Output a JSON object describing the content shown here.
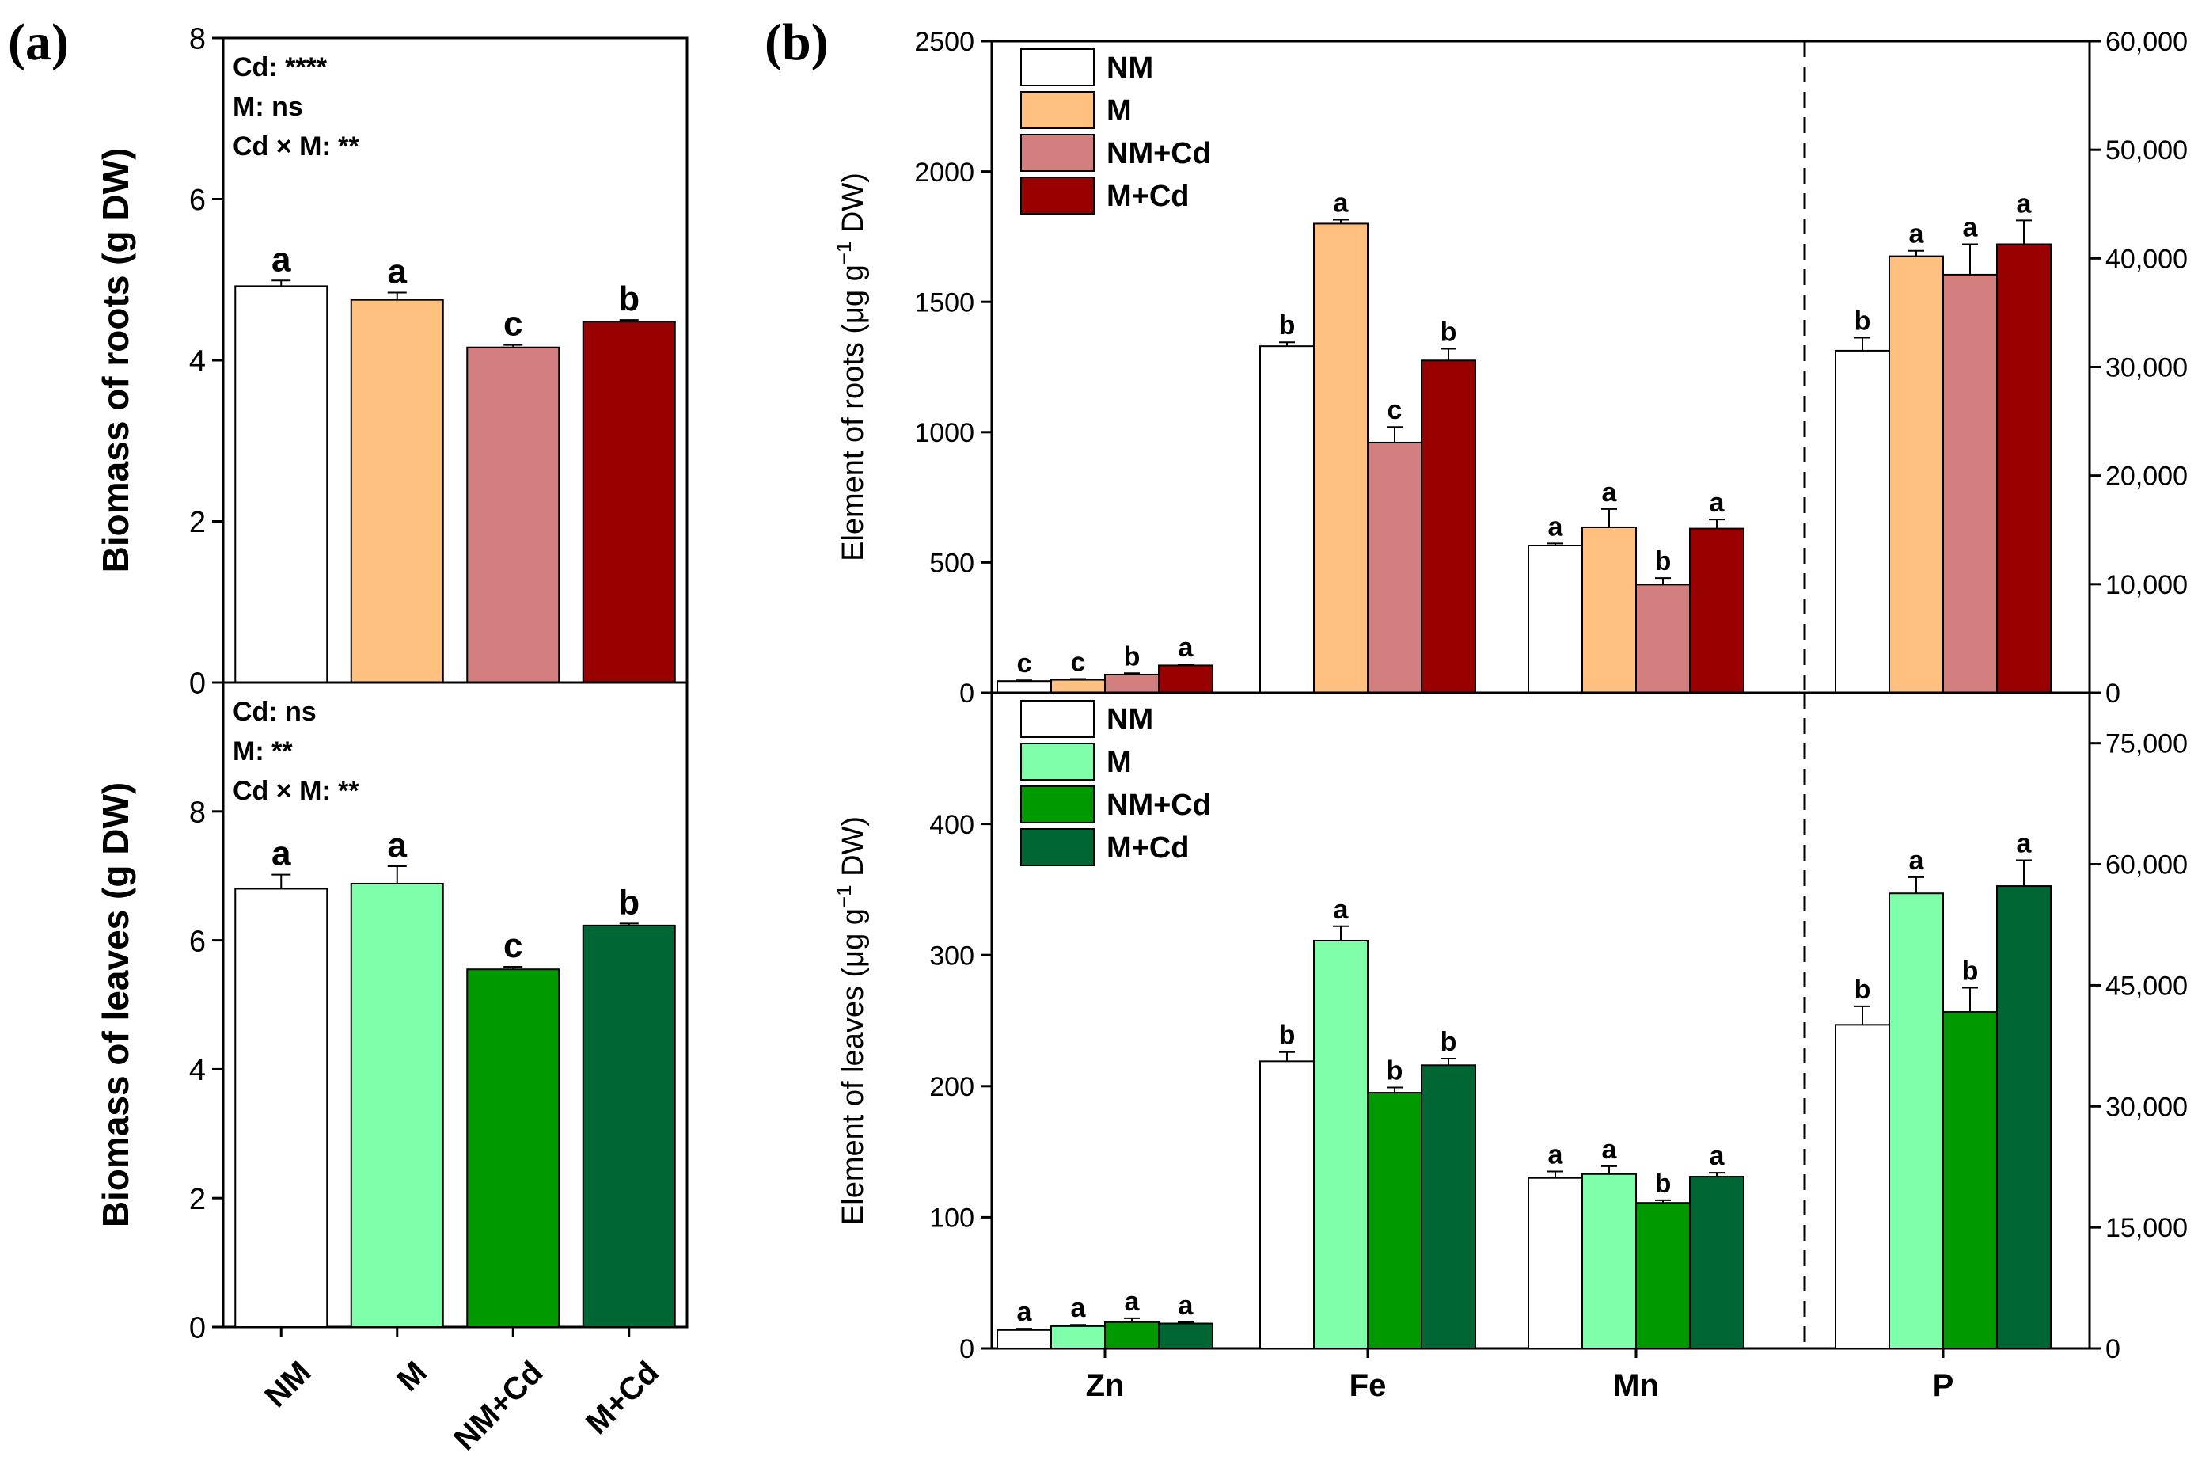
{
  "panel_labels": {
    "a": "(a)",
    "b": "(b)"
  },
  "chart_data": [
    {
      "id": "a-roots",
      "type": "bar",
      "ylabel": "Biomass of roots (g DW)",
      "ylim": [
        0,
        8
      ],
      "yticks": [
        0,
        2,
        4,
        6,
        8
      ],
      "categories": [
        "NM",
        "M",
        "NM+Cd",
        "M+Cd"
      ],
      "values": [
        4.92,
        4.75,
        4.16,
        4.48
      ],
      "errors": [
        0.07,
        0.09,
        0.03,
        0.02
      ],
      "letters": [
        "a",
        "a",
        "c",
        "b"
      ],
      "colors": [
        "#ffffff",
        "#ffc080",
        "#d47f7f",
        "#990000"
      ],
      "stats": [
        "Cd: ****",
        "M: ns",
        "Cd × M: **"
      ]
    },
    {
      "id": "a-leaves",
      "type": "bar",
      "ylabel": "Biomass of leaves (g DW)",
      "ylim": [
        0,
        10
      ],
      "yticks": [
        0,
        2,
        4,
        6,
        8
      ],
      "categories": [
        "NM",
        "M",
        "NM+Cd",
        "M+Cd"
      ],
      "values": [
        6.8,
        6.88,
        5.55,
        6.23
      ],
      "errors": [
        0.22,
        0.27,
        0.04,
        0.03
      ],
      "letters": [
        "a",
        "a",
        "c",
        "b"
      ],
      "colors": [
        "#ffffff",
        "#80ffaa",
        "#009900",
        "#006633"
      ],
      "stats": [
        "Cd: ns",
        "M: **",
        "Cd × M: **"
      ],
      "xticklabels": [
        "NM",
        "M",
        "NM+Cd",
        "M+Cd"
      ]
    },
    {
      "id": "b-roots",
      "type": "bar",
      "ylabel_main": "Element of roots (μg g",
      "ylabel_sup": "−1",
      "ylabel_tail": " DW)",
      "ylim": [
        0,
        2500
      ],
      "yticks": [
        0,
        500,
        1000,
        1500,
        2000,
        2500
      ],
      "y2lim": [
        0,
        60000
      ],
      "y2ticks": [
        "0",
        "10,000",
        "20,000",
        "30,000",
        "40,000",
        "50,000",
        "60,000"
      ],
      "categories": [
        "Zn",
        "Fe",
        "Mn",
        "P"
      ],
      "legend": [
        "NM",
        "M",
        "NM+Cd",
        "M+Cd"
      ],
      "colors": [
        "#ffffff",
        "#ffc080",
        "#d47f7f",
        "#990000"
      ],
      "series": [
        {
          "name": "NM",
          "values": [
            45,
            1330,
            565,
            31500
          ],
          "errors": [
            3,
            15,
            8,
            1200
          ],
          "letters": [
            "c",
            "b",
            "a",
            "b"
          ]
        },
        {
          "name": "M",
          "values": [
            50,
            1800,
            635,
            40200
          ],
          "errors": [
            3,
            15,
            70,
            500
          ],
          "letters": [
            "c",
            "a",
            "a",
            "a"
          ]
        },
        {
          "name": "NM+Cd",
          "values": [
            70,
            960,
            415,
            38500
          ],
          "errors": [
            5,
            60,
            25,
            2800
          ],
          "letters": [
            "b",
            "c",
            "b",
            "a"
          ]
        },
        {
          "name": "M+Cd",
          "values": [
            105,
            1275,
            630,
            41300
          ],
          "errors": [
            4,
            45,
            35,
            2200
          ],
          "letters": [
            "a",
            "b",
            "a",
            "a"
          ]
        }
      ]
    },
    {
      "id": "b-leaves",
      "type": "bar",
      "ylabel_main": "Element of leaves (μg g",
      "ylabel_sup": "−1",
      "ylabel_tail": " DW)",
      "ylim": [
        0,
        500
      ],
      "yticks": [
        0,
        100,
        200,
        300,
        400
      ],
      "y2lim": [
        0,
        81250
      ],
      "y2ticks": [
        "0",
        "15,000",
        "30,000",
        "45,000",
        "60,000",
        "75,000"
      ],
      "categories": [
        "Zn",
        "Fe",
        "Mn",
        "P"
      ],
      "legend": [
        "NM",
        "M",
        "NM+Cd",
        "M+Cd"
      ],
      "colors": [
        "#ffffff",
        "#80ffaa",
        "#009900",
        "#006633"
      ],
      "series": [
        {
          "name": "NM",
          "values": [
            14,
            219,
            130,
            40100
          ],
          "errors": [
            1,
            7,
            5,
            2300
          ],
          "letters": [
            "a",
            "b",
            "a",
            "b"
          ]
        },
        {
          "name": "M",
          "values": [
            17,
            311,
            133,
            56400
          ],
          "errors": [
            1,
            11,
            6,
            2000
          ],
          "letters": [
            "a",
            "a",
            "a",
            "a"
          ]
        },
        {
          "name": "NM+Cd",
          "values": [
            20,
            195,
            111,
            41700
          ],
          "errors": [
            3,
            4,
            2,
            3000
          ],
          "letters": [
            "a",
            "b",
            "b",
            "b"
          ]
        },
        {
          "name": "M+Cd",
          "values": [
            19,
            216,
            131,
            57300
          ],
          "errors": [
            1,
            5,
            3,
            3200
          ],
          "letters": [
            "a",
            "b",
            "a",
            "a"
          ]
        }
      ]
    }
  ]
}
